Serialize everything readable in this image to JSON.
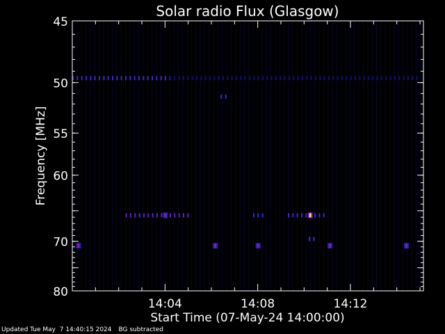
{
  "footer": {
    "updated": "Updated Tue May  7 14:40:15 2024",
    "mode": "BG subtracted"
  },
  "chart_data": {
    "type": "heatmap",
    "title": "Solar radio Flux (Glasgow)",
    "xlabel": "Start Time (07-May-24 14:00:00)",
    "ylabel": "Frequency [MHz]",
    "xlim_minutes": [
      0,
      15.15
    ],
    "ylim_mhz": [
      45,
      80
    ],
    "y_scale": "reciprocal",
    "x_tick_labels": [
      {
        "minute": 4,
        "label": "14:04"
      },
      {
        "minute": 8,
        "label": "14:08"
      },
      {
        "minute": 12,
        "label": "14:12"
      }
    ],
    "y_tick_labels": [
      {
        "mhz": 45,
        "label": "45"
      },
      {
        "mhz": 50,
        "label": "50"
      },
      {
        "mhz": 55,
        "label": "55"
      },
      {
        "mhz": 60,
        "label": "60"
      },
      {
        "mhz": 70,
        "label": "70"
      },
      {
        "mhz": 80,
        "label": "80"
      }
    ],
    "y_minor_ticks_mhz": [
      65,
      75
    ],
    "colormap": [
      "#000010",
      "#10106a",
      "#2a2adc",
      "#8a1aa0",
      "#ff5a00",
      "#ffe060"
    ],
    "emission_bands": [
      {
        "mhz": 49.6,
        "start_min": 0.0,
        "end_min": 4.2,
        "intensity": 0.45
      },
      {
        "mhz": 49.6,
        "start_min": 4.2,
        "end_min": 15.0,
        "intensity": 0.2
      },
      {
        "mhz": 51.3,
        "start_min": 6.4,
        "end_min": 6.6,
        "intensity": 0.4
      },
      {
        "mhz": 65.7,
        "start_min": 2.3,
        "end_min": 5.0,
        "intensity": 0.5
      },
      {
        "mhz": 65.7,
        "start_min": 7.8,
        "end_min": 8.3,
        "intensity": 0.4
      },
      {
        "mhz": 65.7,
        "start_min": 9.3,
        "end_min": 11.0,
        "intensity": 0.45
      },
      {
        "mhz": 69.6,
        "start_min": 10.2,
        "end_min": 10.5,
        "intensity": 0.45
      }
    ],
    "hot_spots": [
      {
        "mhz": 65.7,
        "minute": 10.25,
        "intensity": 1.0
      },
      {
        "mhz": 65.7,
        "minute": 4.0,
        "intensity": 0.6
      },
      {
        "mhz": 70.8,
        "minute": 0.25,
        "intensity": 0.6
      },
      {
        "mhz": 70.8,
        "minute": 6.15,
        "intensity": 0.6
      },
      {
        "mhz": 70.8,
        "minute": 8.0,
        "intensity": 0.6
      },
      {
        "mhz": 70.8,
        "minute": 11.1,
        "intensity": 0.6
      },
      {
        "mhz": 70.8,
        "minute": 14.4,
        "intensity": 0.6
      }
    ]
  }
}
